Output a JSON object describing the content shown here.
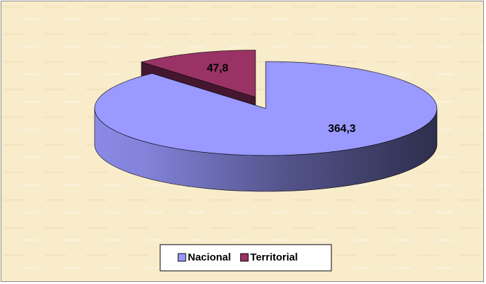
{
  "chart_data": {
    "type": "pie3d",
    "categories": [
      "Nacional",
      "Territorial"
    ],
    "values": [
      364.3,
      47.8
    ],
    "value_labels": [
      "364,3",
      "47,8"
    ],
    "colors": [
      "#9999ff",
      "#993366"
    ],
    "exploded": "Territorial",
    "legend": "bottom"
  }
}
